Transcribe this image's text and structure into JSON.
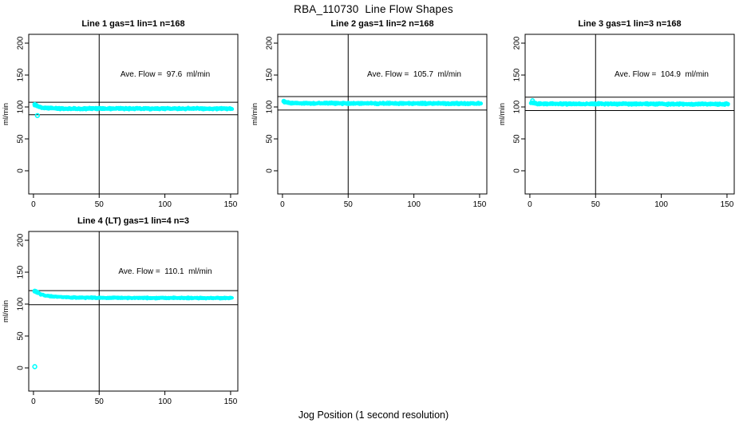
{
  "main_title": "RBA_110730  Line Flow Shapes",
  "x_axis_label": "Jog Position (1 second resolution)",
  "colors": {
    "marker": "#00FFFF",
    "axis": "#000000",
    "background": "#FFFFFF"
  },
  "chart_data": [
    {
      "type": "scatter",
      "title": "Line 1 gas=1 lin=1 n=168",
      "annotation": "Ave. Flow =  97.6  ml/min",
      "ave_flow_ml_min": 97.6,
      "n": 168,
      "ylabel": "ml/min",
      "x_ticks": [
        0,
        50,
        100,
        150
      ],
      "y_ticks": [
        0,
        50,
        100,
        150,
        200
      ],
      "x_range": [
        -3.6,
        155.5
      ],
      "y_range": [
        -36.3,
        213.8
      ],
      "vline_x": 50,
      "hlines": [
        107.4,
        87.8
      ],
      "grid": false,
      "series_profile": [
        [
          1,
          103.5
        ],
        [
          3,
          101.0
        ],
        [
          5,
          99.5
        ],
        [
          8,
          98.5
        ],
        [
          12,
          98.0
        ],
        [
          20,
          97.6
        ],
        [
          40,
          97.4
        ],
        [
          151,
          97.3
        ]
      ],
      "band_halfwidth": 1.7,
      "lead_points": [
        [
          1,
          104.0
        ],
        [
          1.6,
          103.2
        ],
        [
          2.3,
          102.4
        ]
      ],
      "outliers": [
        [
          3,
          86.5
        ]
      ],
      "x_data_max": 151
    },
    {
      "type": "scatter",
      "title": "Line 2 gas=1 lin=2 n=168",
      "annotation": "Ave. Flow =  105.7  ml/min",
      "ave_flow_ml_min": 105.7,
      "n": 168,
      "ylabel": "ml/min",
      "x_ticks": [
        0,
        50,
        100,
        150
      ],
      "y_ticks": [
        0,
        50,
        100,
        150,
        200
      ],
      "x_range": [
        -3.6,
        155.5
      ],
      "y_range": [
        -36.3,
        213.8
      ],
      "vline_x": 50,
      "hlines": [
        116.3,
        95.1
      ],
      "grid": false,
      "series_profile": [
        [
          1,
          108.5
        ],
        [
          3,
          106.8
        ],
        [
          6,
          106.1
        ],
        [
          12,
          105.8
        ],
        [
          30,
          105.6
        ],
        [
          151,
          105.3
        ]
      ],
      "band_halfwidth": 1.6,
      "lead_points": [
        [
          1,
          109.0
        ],
        [
          1.7,
          108.2
        ]
      ],
      "outliers": [],
      "x_data_max": 151
    },
    {
      "type": "scatter",
      "title": "Line 3 gas=1 lin=3 n=168",
      "annotation": "Ave. Flow =  104.9  ml/min",
      "ave_flow_ml_min": 104.9,
      "n": 168,
      "ylabel": "ml/min",
      "x_ticks": [
        0,
        50,
        100,
        150
      ],
      "y_ticks": [
        0,
        50,
        100,
        150,
        200
      ],
      "x_range": [
        -3.6,
        155.5
      ],
      "y_range": [
        -36.3,
        213.8
      ],
      "vline_x": 50,
      "hlines": [
        115.4,
        94.4
      ],
      "grid": false,
      "series_profile": [
        [
          1,
          107.0
        ],
        [
          3,
          105.6
        ],
        [
          6,
          105.0
        ],
        [
          15,
          104.8
        ],
        [
          151,
          104.4
        ]
      ],
      "band_halfwidth": 1.8,
      "lead_points": [
        [
          2,
          110.0
        ]
      ],
      "outliers": [],
      "x_data_max": 151
    },
    {
      "type": "scatter",
      "title": "Line 4 (LT) gas=1 lin=4 n=3",
      "annotation": "Ave. Flow =  110.1  ml/min",
      "ave_flow_ml_min": 110.1,
      "n": 3,
      "ylabel": "ml/min",
      "x_ticks": [
        0,
        50,
        100,
        150
      ],
      "y_ticks": [
        0,
        50,
        100,
        150,
        200
      ],
      "x_range": [
        -3.6,
        155.5
      ],
      "y_range": [
        -36.3,
        213.8
      ],
      "vline_x": 50,
      "hlines": [
        121.1,
        99.1
      ],
      "grid": false,
      "series_profile": [
        [
          1,
          119.5
        ],
        [
          3,
          117.5
        ],
        [
          6,
          115.0
        ],
        [
          10,
          113.0
        ],
        [
          15,
          111.8
        ],
        [
          25,
          110.7
        ],
        [
          40,
          110.0
        ],
        [
          70,
          109.7
        ],
        [
          151,
          109.5
        ]
      ],
      "band_halfwidth": 1.1,
      "lead_points": [
        [
          1,
          120.5
        ],
        [
          1.8,
          119.8
        ],
        [
          2.6,
          118.8
        ],
        [
          3.4,
          118.0
        ]
      ],
      "outliers": [
        [
          1,
          2.0
        ]
      ],
      "x_data_max": 151
    }
  ]
}
